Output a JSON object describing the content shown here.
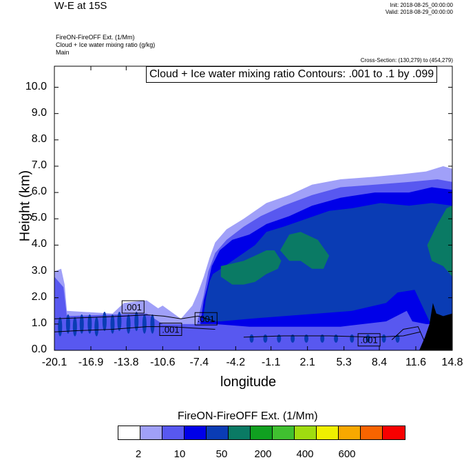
{
  "header": {
    "title": "W-E at 15S",
    "init": "Init: 2018-08-25_00:00:00",
    "valid": "Valid: 2018-08-29_00:00:00",
    "var_lines": [
      "FireON-FireOFF Ext.   (1/Mm)",
      "Cloud + Ice water mixing ratio   (g/kg)",
      "Main"
    ],
    "cross_section": "Cross-Section: (130,279) to (454,279)"
  },
  "chart_data": {
    "type": "heatmap",
    "title": "FireON-FireOFF Ext. (1/Mm) with Cloud + Ice water mixing ratio contours",
    "contour_note": "Cloud + Ice water mixing ratio Contours: .001 to .1 by .099",
    "contour_labels": [
      ".001",
      ".001",
      ".001",
      ".001"
    ],
    "xlabel": "longitude",
    "ylabel": "Height (km)",
    "xlim": [
      -20.1,
      14.8
    ],
    "ylim": [
      0.0,
      10.8
    ],
    "x_ticks": [
      "-20.1",
      "-16.9",
      "-13.8",
      "-10.6",
      "-7.4",
      "-4.2",
      "-1.1",
      "2.1",
      "5.3",
      "8.4",
      "11.6",
      "14.8"
    ],
    "y_ticks": [
      "0.0",
      "1.0",
      "2.0",
      "3.0",
      "4.0",
      "5.0",
      "6.0",
      "7.0",
      "8.0",
      "9.0",
      "10.0"
    ],
    "y_tick_values": [
      0,
      1,
      2,
      3,
      4,
      5,
      6,
      7,
      8,
      9,
      10
    ],
    "layers": [
      {
        "level": 1,
        "polygon": [
          [
            -20.1,
            0
          ],
          [
            -20.1,
            3.0
          ],
          [
            -19.5,
            3.1
          ],
          [
            -19.2,
            2.5
          ],
          [
            -19.0,
            1.5
          ],
          [
            -15,
            1.4
          ],
          [
            -14,
            1.8
          ],
          [
            -12,
            1.9
          ],
          [
            -11.0,
            1.6
          ],
          [
            -10.6,
            1.7
          ],
          [
            -9,
            1.2
          ],
          [
            -8.0,
            1.7
          ],
          [
            -7.5,
            2.2
          ],
          [
            -7.0,
            2.8
          ],
          [
            -6.5,
            3.5
          ],
          [
            -6.0,
            4.1
          ],
          [
            -5.0,
            4.6
          ],
          [
            -3.5,
            5.0
          ],
          [
            -2.5,
            5.3
          ],
          [
            -1.5,
            5.6
          ],
          [
            0.5,
            5.9
          ],
          [
            2.5,
            6.3
          ],
          [
            5.0,
            6.5
          ],
          [
            8.0,
            6.6
          ],
          [
            10.5,
            6.7
          ],
          [
            12.5,
            6.8
          ],
          [
            14.0,
            7.0
          ],
          [
            14.8,
            6.9
          ],
          [
            14.8,
            0
          ]
        ]
      },
      {
        "level": 2,
        "polygon": [
          [
            -20.1,
            0
          ],
          [
            -20.1,
            2.8
          ],
          [
            -19.3,
            2.4
          ],
          [
            -19.0,
            1.3
          ],
          [
            -12,
            1.4
          ],
          [
            -10.6,
            1.0
          ],
          [
            -7.6,
            1.0
          ],
          [
            -7.0,
            2.1
          ],
          [
            -6.6,
            3.0
          ],
          [
            -6.0,
            3.7
          ],
          [
            -5.0,
            4.2
          ],
          [
            -3.5,
            4.7
          ],
          [
            -2.0,
            5.1
          ],
          [
            0.0,
            5.5
          ],
          [
            2.5,
            5.9
          ],
          [
            5.0,
            6.2
          ],
          [
            8.0,
            6.3
          ],
          [
            11.0,
            6.4
          ],
          [
            13.5,
            6.5
          ],
          [
            14.8,
            6.4
          ],
          [
            14.8,
            0
          ]
        ]
      },
      {
        "level": 3,
        "polygon": [
          [
            -7.3,
            1.0
          ],
          [
            -7.0,
            1.9
          ],
          [
            -6.7,
            2.4
          ],
          [
            -6.3,
            3.2
          ],
          [
            -5.6,
            3.8
          ],
          [
            -4.5,
            4.2
          ],
          [
            -3.0,
            4.4
          ],
          [
            -1.5,
            4.8
          ],
          [
            0.5,
            5.1
          ],
          [
            2.5,
            5.5
          ],
          [
            5.0,
            5.8
          ],
          [
            8.0,
            6.0
          ],
          [
            11.0,
            6.0
          ],
          [
            13.0,
            6.2
          ],
          [
            14.8,
            6.1
          ],
          [
            14.8,
            1.0
          ],
          [
            12.5,
            1.0
          ],
          [
            11.3,
            1.1
          ],
          [
            10.8,
            1.5
          ],
          [
            9.0,
            1.1
          ],
          [
            5.0,
            0.9
          ],
          [
            1.0,
            0.9
          ],
          [
            -3.0,
            0.9
          ],
          [
            -6.0,
            1.0
          ]
        ]
      },
      {
        "level": 4,
        "polygon": [
          [
            -7.1,
            1.1
          ],
          [
            -6.8,
            2.0
          ],
          [
            -6.5,
            2.6
          ],
          [
            -6.2,
            2.9
          ],
          [
            -5.5,
            3.1
          ],
          [
            -4.5,
            3.4
          ],
          [
            -3.5,
            3.7
          ],
          [
            -2.5,
            4.0
          ],
          [
            -1.5,
            4.5
          ],
          [
            0.0,
            4.7
          ],
          [
            2.0,
            5.0
          ],
          [
            4.0,
            5.3
          ],
          [
            6.0,
            5.4
          ],
          [
            8.5,
            5.6
          ],
          [
            11.0,
            5.5
          ],
          [
            13.0,
            5.6
          ],
          [
            14.8,
            5.5
          ],
          [
            14.8,
            1.0
          ],
          [
            12.8,
            1.1
          ],
          [
            11.5,
            2.3
          ],
          [
            10.0,
            2.2
          ],
          [
            9.0,
            1.8
          ],
          [
            6.0,
            1.5
          ],
          [
            3.0,
            1.4
          ],
          [
            0.0,
            1.3
          ],
          [
            -3.0,
            1.2
          ],
          [
            -5.5,
            1.1
          ]
        ]
      },
      {
        "level": 5,
        "polygon": [
          [
            -5.5,
            3.2
          ],
          [
            -4.5,
            3.3
          ],
          [
            -3.5,
            3.4
          ],
          [
            -2.5,
            3.6
          ],
          [
            -1.5,
            3.8
          ],
          [
            -0.8,
            3.8
          ],
          [
            -0.2,
            3.4
          ],
          [
            -0.5,
            3.1
          ],
          [
            -1.5,
            2.9
          ],
          [
            -2.5,
            2.6
          ],
          [
            -3.5,
            2.5
          ],
          [
            -4.5,
            2.5
          ],
          [
            -5.5,
            2.8
          ]
        ]
      },
      {
        "level": 5,
        "polygon": [
          [
            -0.3,
            3.8
          ],
          [
            0.5,
            4.4
          ],
          [
            1.5,
            4.5
          ],
          [
            3.0,
            4.2
          ],
          [
            4.0,
            3.6
          ],
          [
            3.5,
            3.1
          ],
          [
            2.5,
            3.1
          ],
          [
            1.5,
            3.4
          ],
          [
            0.5,
            3.4
          ]
        ]
      },
      {
        "level": 5,
        "polygon": [
          [
            12.6,
            4.0
          ],
          [
            13.5,
            4.8
          ],
          [
            14.3,
            5.4
          ],
          [
            14.8,
            5.5
          ],
          [
            14.8,
            2.8
          ],
          [
            14.0,
            3.2
          ],
          [
            13.0,
            3.4
          ]
        ]
      }
    ],
    "colorbar": {
      "title": "FireON-FireOFF Ext.  (1/Mm)",
      "colors": [
        "#ffffff",
        "#a0a0f8",
        "#5858f0",
        "#0000e8",
        "#0a3cb4",
        "#0a7a64",
        "#10a020",
        "#40c030",
        "#a0dc10",
        "#f0f000",
        "#f8a800",
        "#f86400",
        "#f80000"
      ],
      "labels": [
        "2",
        "10",
        "50",
        "200",
        "400",
        "600"
      ]
    }
  }
}
